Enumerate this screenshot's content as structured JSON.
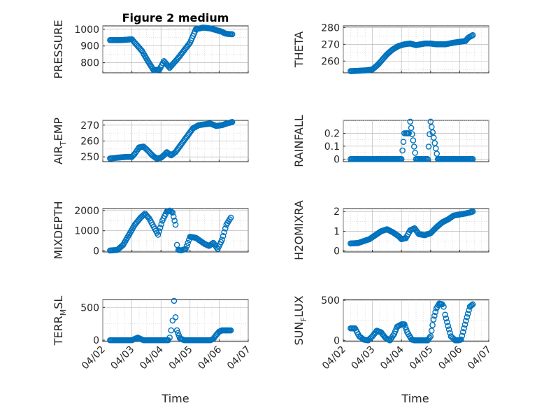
{
  "chart_data": {
    "type": "scatter",
    "figure_title": "Figure 2 medium",
    "x_axis": {
      "label": "Time",
      "tick_labels": [
        "04/02",
        "04/03",
        "04/04",
        "04/05",
        "04/06",
        "04/07"
      ],
      "range_days": [
        0,
        5
      ],
      "data_start_day": 0.25,
      "data_end_day": 4.45
    },
    "marker": {
      "shape": "circle",
      "filled": false,
      "color": "#0072bd"
    },
    "grid": true,
    "minor_grid": true,
    "panels": [
      {
        "id": "pressure",
        "ylabel": "PRESSURE",
        "ylim": [
          740,
          1020
        ],
        "yticks": [
          800,
          900,
          1000
        ],
        "x": [
          0.25,
          0.6,
          1.0,
          1.35,
          1.55,
          1.75,
          1.95,
          2.1,
          2.3,
          2.6,
          3.0,
          3.2,
          3.45,
          3.7,
          3.9,
          4.1,
          4.2,
          4.3,
          4.45
        ],
        "y": [
          935,
          935,
          940,
          870,
          810,
          755,
          760,
          810,
          770,
          830,
          920,
          1000,
          1010,
          1005,
          995,
          985,
          975,
          972,
          970
        ]
      },
      {
        "id": "theta",
        "ylabel": "THETA",
        "ylim": [
          253,
          281
        ],
        "yticks": [
          260,
          270,
          280
        ],
        "x": [
          0.25,
          0.5,
          0.8,
          1.0,
          1.2,
          1.5,
          1.7,
          1.9,
          2.1,
          2.3,
          2.5,
          2.8,
          3.0,
          3.2,
          3.5,
          3.8,
          4.0,
          4.2,
          4.3,
          4.45
        ],
        "y": [
          254,
          254.2,
          254.5,
          255,
          258,
          264,
          267,
          269,
          270,
          270.5,
          269.5,
          270.5,
          270.5,
          270,
          270,
          271,
          271.5,
          272,
          274,
          275.5
        ]
      },
      {
        "id": "air_temp",
        "ylabel": "AIR",
        "ylabel_sub": "T",
        "ylabel_rest": "EMP",
        "ylim": [
          247,
          273
        ],
        "yticks": [
          250,
          260,
          270
        ],
        "x": [
          0.25,
          0.5,
          0.8,
          1.0,
          1.1,
          1.25,
          1.4,
          1.55,
          1.7,
          1.85,
          2.0,
          2.1,
          2.2,
          2.35,
          2.5,
          2.7,
          2.9,
          3.1,
          3.3,
          3.5,
          3.7,
          3.9,
          4.1,
          4.25,
          4.45
        ],
        "y": [
          249,
          249.5,
          250,
          250,
          252,
          256,
          256.5,
          254,
          251,
          249,
          249.5,
          251,
          253,
          251,
          253,
          258,
          263,
          268,
          270,
          270.5,
          271,
          269.5,
          270,
          271,
          272
        ]
      },
      {
        "id": "rainfall",
        "ylabel": "RAINFALL",
        "ylim": [
          -0.02,
          0.3
        ],
        "yticks": [
          0,
          0.1,
          0.2
        ],
        "x": [
          0.25,
          0.5,
          0.75,
          1.0,
          1.25,
          1.5,
          1.75,
          2.0,
          2.1,
          2.15,
          2.25,
          2.3,
          2.5,
          2.75,
          2.9,
          3.0,
          3.25,
          3.5,
          3.75,
          4.0,
          4.25,
          4.45
        ],
        "y": [
          0,
          0,
          0,
          0,
          0,
          0,
          0,
          0,
          0.2,
          0.2,
          0.2,
          0.29,
          0,
          0,
          0,
          0.29,
          0,
          0,
          0,
          0,
          0,
          0
        ]
      },
      {
        "id": "mixdepth",
        "ylabel": "MIXDEPTH",
        "ylim": [
          -50,
          2100
        ],
        "yticks": [
          0,
          1000,
          2000
        ],
        "x": [
          0.25,
          0.5,
          0.7,
          0.9,
          1.1,
          1.3,
          1.45,
          1.6,
          1.75,
          1.9,
          2.05,
          2.2,
          2.3,
          2.4,
          2.5,
          2.55,
          2.6,
          2.7,
          2.85,
          3.0,
          3.2,
          3.35,
          3.5,
          3.65,
          3.8,
          3.95,
          4.1,
          4.25,
          4.4
        ],
        "y": [
          20,
          50,
          300,
          800,
          1300,
          1650,
          1850,
          1600,
          1200,
          800,
          1500,
          1950,
          2000,
          1900,
          1300,
          300,
          50,
          30,
          100,
          700,
          650,
          500,
          350,
          250,
          400,
          100,
          550,
          1300,
          1650
        ]
      },
      {
        "id": "h2omixra",
        "ylabel": "H2OMIXRA",
        "ylim": [
          -0.05,
          2.15
        ],
        "yticks": [
          0,
          1,
          2
        ],
        "x": [
          0.25,
          0.5,
          0.7,
          0.9,
          1.1,
          1.3,
          1.5,
          1.7,
          1.9,
          2.0,
          2.15,
          2.3,
          2.45,
          2.6,
          2.8,
          3.0,
          3.2,
          3.4,
          3.6,
          3.8,
          4.0,
          4.2,
          4.35,
          4.45
        ],
        "y": [
          0.38,
          0.4,
          0.5,
          0.6,
          0.8,
          1.0,
          1.1,
          0.95,
          0.75,
          0.6,
          0.65,
          1.05,
          1.15,
          0.85,
          0.8,
          0.9,
          1.2,
          1.45,
          1.6,
          1.8,
          1.85,
          1.9,
          1.95,
          2.0
        ]
      },
      {
        "id": "terr_msl",
        "ylabel": "TERR",
        "ylabel_sub": "M",
        "ylabel_rest": "SL",
        "ylim": [
          -20,
          620
        ],
        "yticks": [
          0,
          500
        ],
        "x": [
          0.25,
          0.5,
          0.75,
          1.0,
          1.2,
          1.4,
          1.6,
          1.8,
          2.0,
          2.15,
          2.25,
          2.3,
          2.35,
          2.4,
          2.45,
          2.5,
          2.55,
          2.65,
          2.8,
          3.0,
          3.2,
          3.4,
          3.6,
          3.7,
          3.8,
          3.9,
          4.0,
          4.1,
          4.2,
          4.3,
          4.4
        ],
        "y": [
          0,
          0,
          0,
          0,
          40,
          0,
          0,
          0,
          0,
          0,
          0,
          40,
          150,
          300,
          600,
          350,
          150,
          30,
          0,
          0,
          0,
          0,
          0,
          0,
          20,
          80,
          130,
          150,
          150,
          150,
          150
        ]
      },
      {
        "id": "sun_flux",
        "ylabel": "SUN",
        "ylabel_sub": "F",
        "ylabel_rest": "LUX",
        "ylim": [
          -15,
          510
        ],
        "yticks": [
          0,
          500
        ],
        "x": [
          0.25,
          0.4,
          0.55,
          0.7,
          0.85,
          1.0,
          1.15,
          1.3,
          1.45,
          1.6,
          1.75,
          1.85,
          2.0,
          2.1,
          2.2,
          2.35,
          2.45,
          2.6,
          2.75,
          2.9,
          3.0,
          3.1,
          3.2,
          3.3,
          3.4,
          3.45,
          3.5,
          3.6,
          3.7,
          3.85,
          3.95,
          4.05,
          4.15,
          4.25,
          4.35,
          4.45
        ],
        "y": [
          150,
          150,
          50,
          10,
          0,
          50,
          120,
          100,
          30,
          0,
          80,
          170,
          200,
          200,
          100,
          10,
          0,
          0,
          0,
          0,
          50,
          260,
          400,
          460,
          450,
          420,
          320,
          180,
          50,
          0,
          0,
          10,
          150,
          290,
          420,
          450
        ]
      }
    ]
  }
}
